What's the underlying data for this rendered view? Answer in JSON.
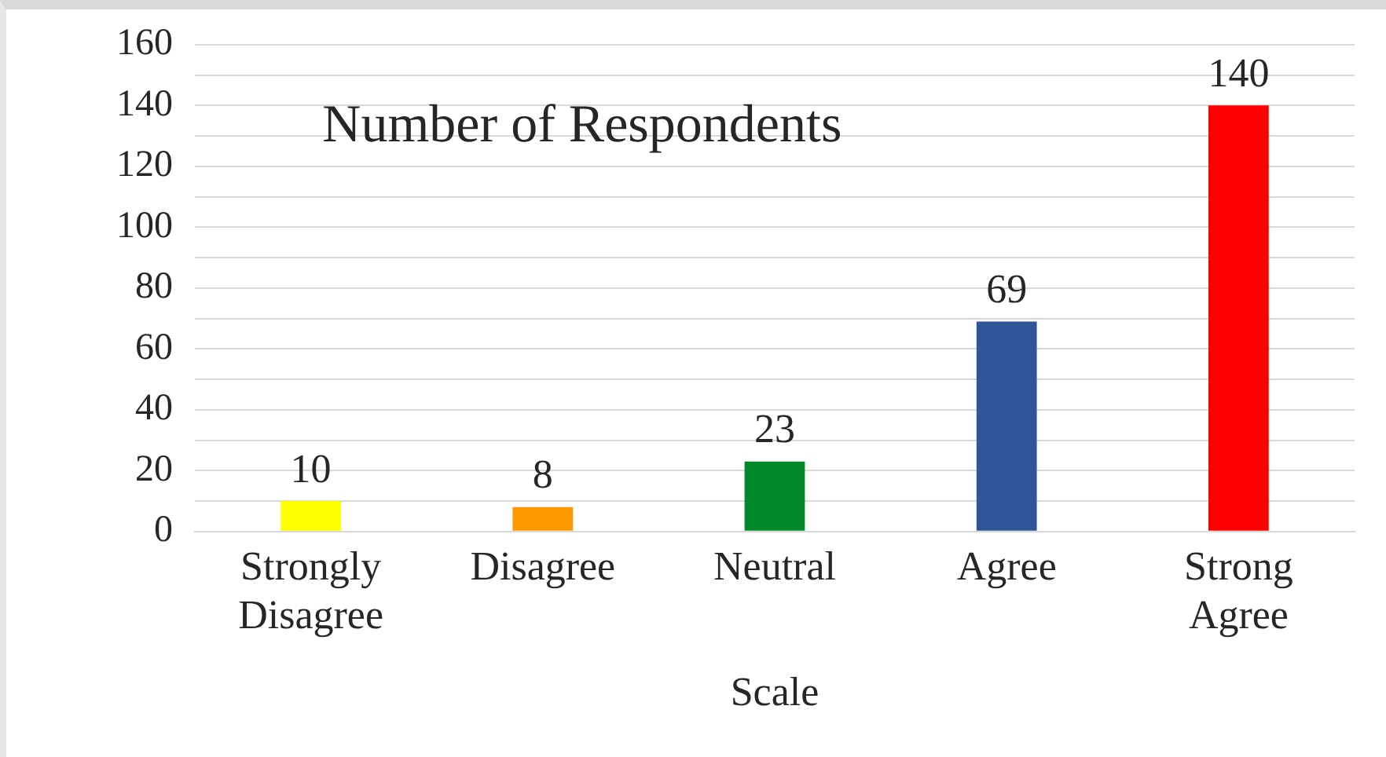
{
  "chart_data": {
    "type": "bar",
    "title": "Number of Respondents",
    "xlabel": "Scale",
    "categories": [
      "Strongly Disagree",
      "Disagree",
      "Neutral",
      "Agree",
      "Strong Agree"
    ],
    "values": [
      10,
      8,
      23,
      69,
      140
    ],
    "colors": [
      "#ffff00",
      "#ff9900",
      "#00882b",
      "#2f5597",
      "#ff0000"
    ],
    "ylim": [
      0,
      160
    ],
    "yticks": [
      0,
      {
        "value": 10,
        "label": null
      },
      20,
      {
        "value": 30,
        "label": null
      },
      40,
      {
        "value": 50,
        "label": null
      },
      60,
      {
        "value": 70,
        "label": null
      },
      80,
      {
        "value": 90,
        "label": null
      },
      100,
      {
        "value": 110,
        "label": null
      },
      120,
      {
        "value": 130,
        "label": null
      },
      140,
      {
        "value": 150,
        "label": null
      },
      160
    ],
    "grid": "y",
    "data_labels": true,
    "legend": false
  }
}
